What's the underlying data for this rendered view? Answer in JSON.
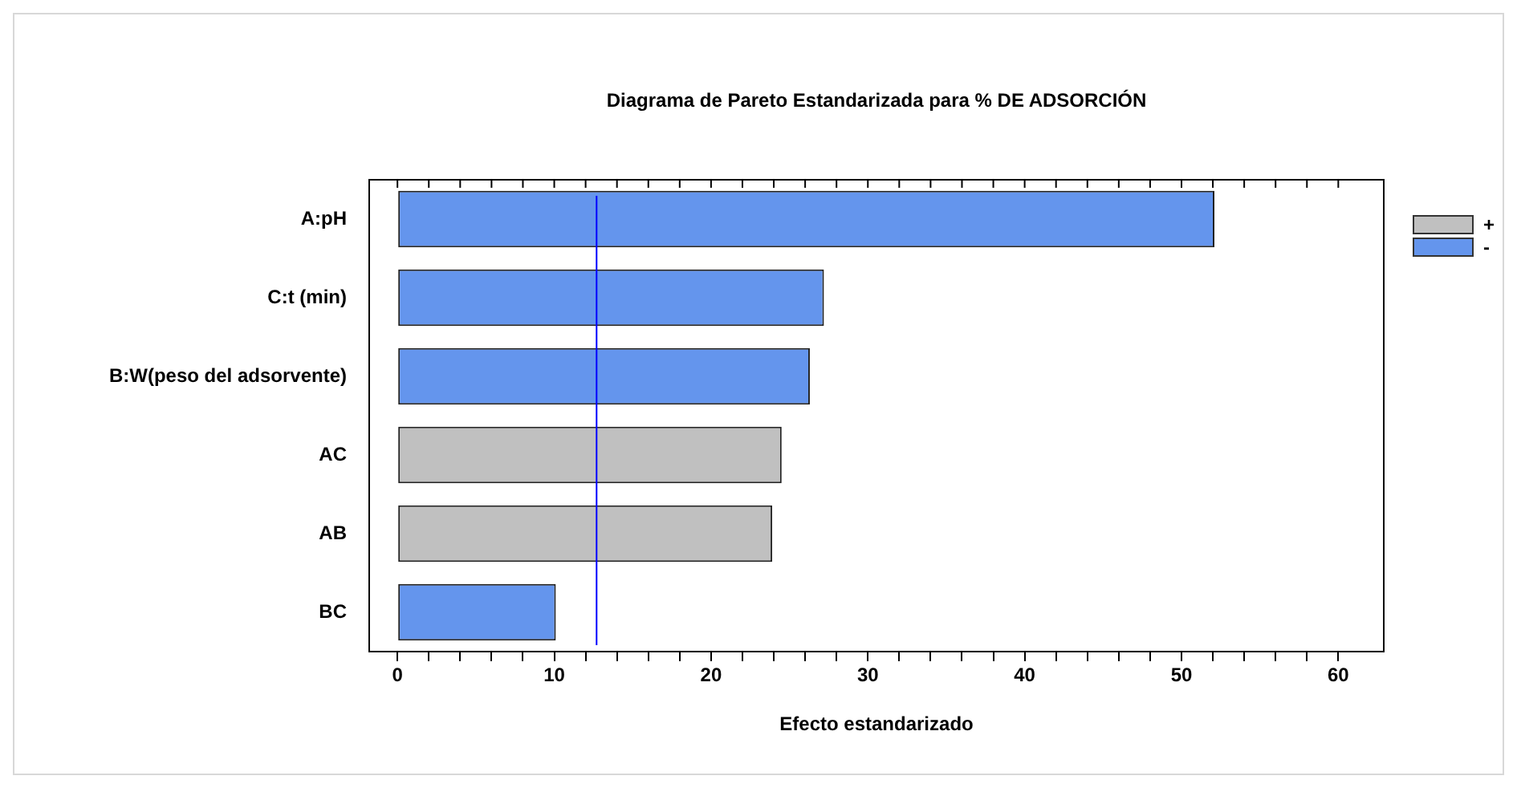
{
  "chart_data": {
    "type": "bar",
    "orientation": "horizontal",
    "stacked": true,
    "title": "Diagrama de Pareto Estandarizada para % DE ADSORCIÓN",
    "xlabel": "Efecto estandarizado",
    "categories": [
      "A:pH",
      "C:t (min)",
      "B:W(peso del adsorvente)",
      "AC",
      "AB",
      "BC"
    ],
    "series": [
      {
        "name": "+",
        "color": "#c0c0c0",
        "values": [
          null,
          null,
          null,
          24.5,
          23.9,
          null
        ]
      },
      {
        "name": "-",
        "color": "#6495ed",
        "values": [
          52.1,
          27.2,
          26.3,
          null,
          null,
          10.1
        ]
      }
    ],
    "xlim": [
      -1.8,
      62.9
    ],
    "xticks": [
      0,
      {
        "value": 2,
        "label": null
      },
      {
        "value": 4,
        "label": null
      },
      {
        "value": 6,
        "label": null
      },
      {
        "value": 8,
        "label": null
      },
      10,
      {
        "value": 12,
        "label": null
      },
      {
        "value": 14,
        "label": null
      },
      {
        "value": 16,
        "label": null
      },
      {
        "value": 18,
        "label": null
      },
      20,
      {
        "value": 22,
        "label": null
      },
      {
        "value": 24,
        "label": null
      },
      {
        "value": 26,
        "label": null
      },
      {
        "value": 28,
        "label": null
      },
      30,
      {
        "value": 32,
        "label": null
      },
      {
        "value": 34,
        "label": null
      },
      {
        "value": 36,
        "label": null
      },
      {
        "value": 38,
        "label": null
      },
      40,
      {
        "value": 42,
        "label": null
      },
      {
        "value": 44,
        "label": null
      },
      {
        "value": 46,
        "label": null
      },
      {
        "value": 48,
        "label": null
      },
      50,
      {
        "value": 52,
        "label": null
      },
      {
        "value": 54,
        "label": null
      },
      {
        "value": 56,
        "label": null
      },
      {
        "value": 58,
        "label": null
      },
      60
    ],
    "ref_lines": [
      {
        "axis": "x",
        "value": 12.7,
        "color": "#0000ff"
      }
    ],
    "grid": false,
    "legend": "top right"
  }
}
